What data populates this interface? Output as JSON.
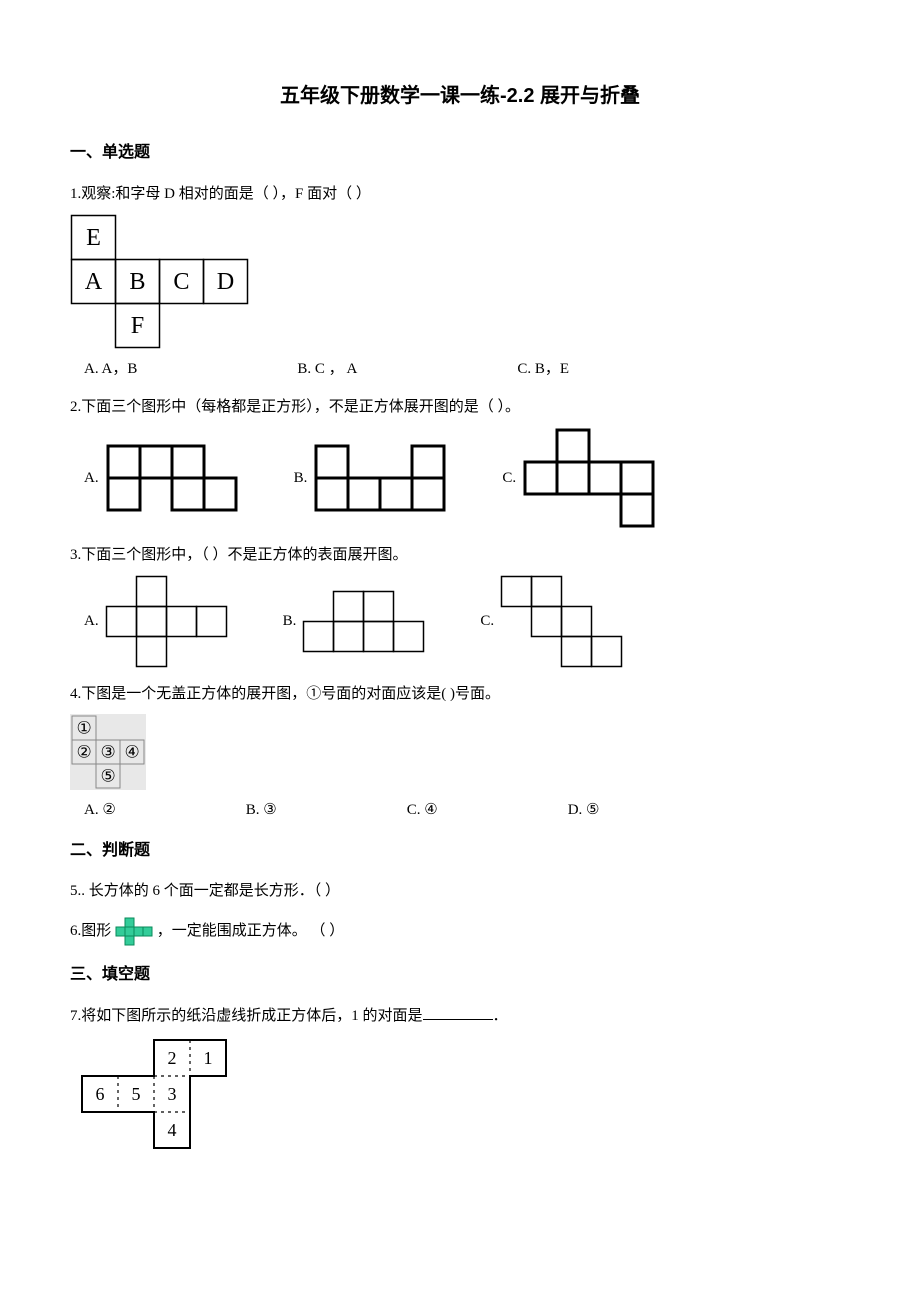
{
  "title": "五年级下册数学一课一练-2.2 展开与折叠",
  "sections": {
    "s1": "一、单选题",
    "s2": "二、判断题",
    "s3": "三、填空题"
  },
  "q1": {
    "text": "1.观察:和字母 D 相对的面是（  ），F 面对（  ）",
    "cells": {
      "E": "E",
      "A": "A",
      "B": "B",
      "C": "C",
      "D": "D",
      "F": "F"
    },
    "optA": "A. A，B",
    "optB": "B. C ，  A",
    "optC": "C. B，E",
    "grid": {
      "cell": 44,
      "stroke": "#000000"
    }
  },
  "q2": {
    "text": "2.下面三个图形中（每格都是正方形），不是正方体展开图的是（    ）。",
    "A": "A.",
    "B": "B.",
    "C": "C.",
    "grid": {
      "cell": 32,
      "stroke": "#000000",
      "lw": 3
    }
  },
  "q3": {
    "text": "3.下面三个图形中，（    ）不是正方体的表面展开图。",
    "A": "A.",
    "B": "B.",
    "C": "C.",
    "grid": {
      "cell": 30,
      "stroke": "#000000",
      "lw": 1.5
    }
  },
  "q4": {
    "text": "4.下图是一个无盖正方体的展开图，①号面的对面应该是(    )号面。",
    "cells": {
      "c1": "①",
      "c2": "②",
      "c3": "③",
      "c4": "④",
      "c5": "⑤"
    },
    "optA": "A. ②",
    "optB": "B. ③",
    "optC": "C. ④",
    "optD": "D. ⑤",
    "grid": {
      "cell": 24,
      "stroke": "#888888",
      "bg": "#e8e8e8"
    }
  },
  "q5": {
    "text": "5..   长方体的 6 个面一定都是长方形．（        ）"
  },
  "q6": {
    "text_a": "6.图形 ",
    "text_b": "，一定能围成正方体。       （        ）",
    "grid": {
      "cell": 9,
      "stroke": "#0a8a5a",
      "fill": "#33cc99",
      "lw": 1
    }
  },
  "q7": {
    "text_a": "7.将如下图所示的纸沿虚线折成正方体后，1 的对面是",
    "text_b": "．",
    "cells": {
      "c1": "1",
      "c2": "2",
      "c3": "3",
      "c4": "4",
      "c5": "5",
      "c6": "6"
    },
    "grid": {
      "cell": 36,
      "stroke": "#000000",
      "lw": 2
    }
  }
}
